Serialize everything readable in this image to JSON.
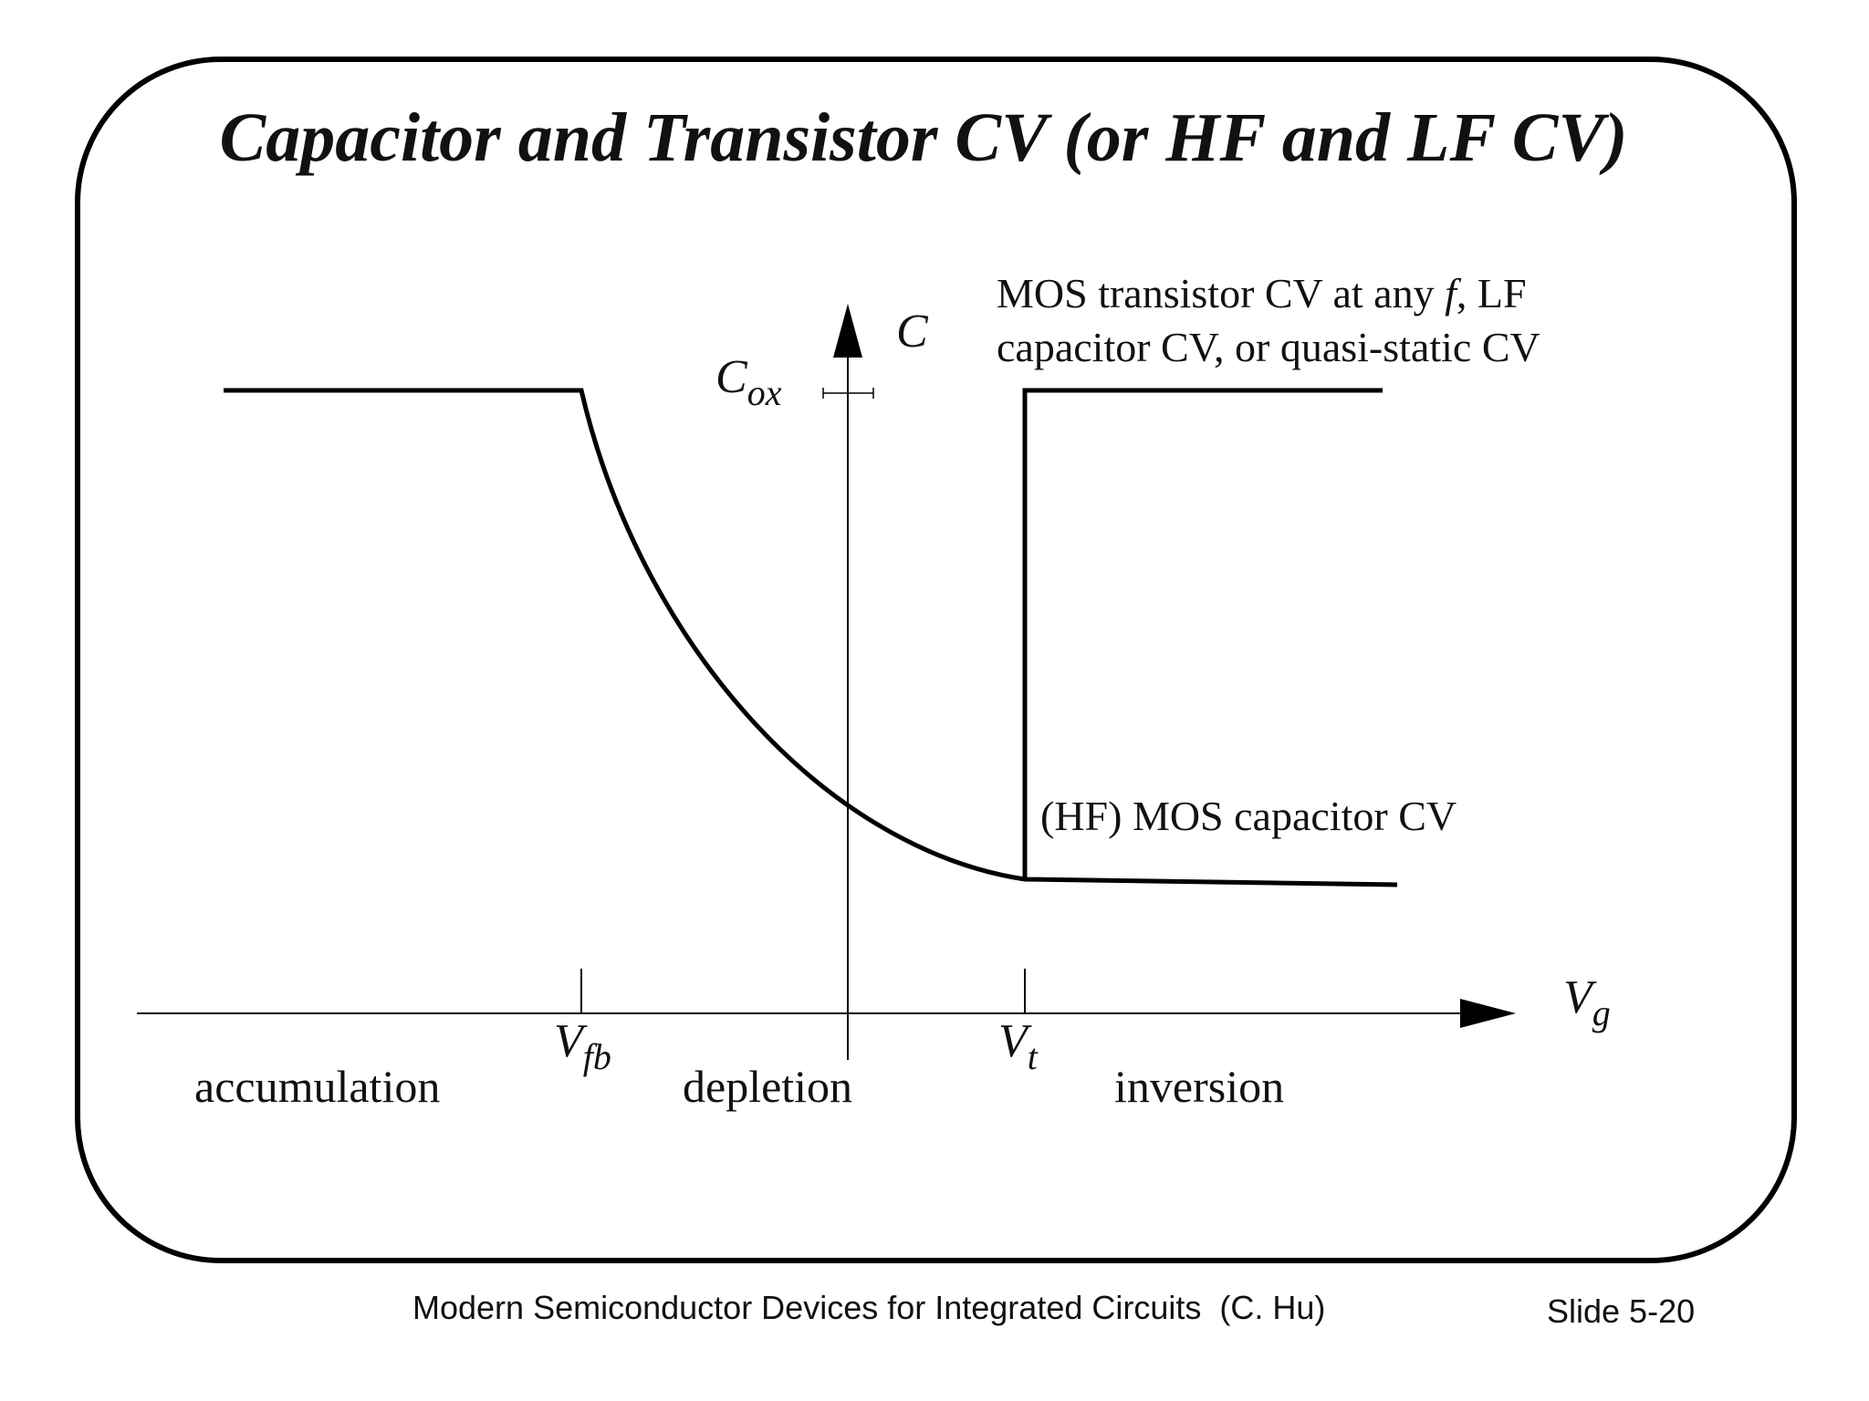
{
  "header": {
    "title": "Capacitor and Transistor CV (or HF and LF CV)"
  },
  "diagram": {
    "y_axis_label": "C",
    "cox_label": {
      "main": "C",
      "sub": "ox"
    },
    "x_axis_label": {
      "main": "V",
      "sub": "g"
    },
    "vfb_label": {
      "main": "V",
      "sub": "fb"
    },
    "vt_label": {
      "main": "V",
      "sub": "t"
    },
    "upper_curve_note": {
      "line1": [
        "MOS transistor CV at any ",
        "f",
        ", LF"
      ],
      "line2": "capacitor CV, or quasi-static CV"
    },
    "lower_curve_note": "(HF) MOS capacitor CV",
    "regions": [
      "accumulation",
      "depletion",
      "inversion"
    ]
  },
  "footer": {
    "book": "Modern Semiconductor Devices for Integrated Circuits  (C. Hu)",
    "slide": "Slide 5-20"
  }
}
